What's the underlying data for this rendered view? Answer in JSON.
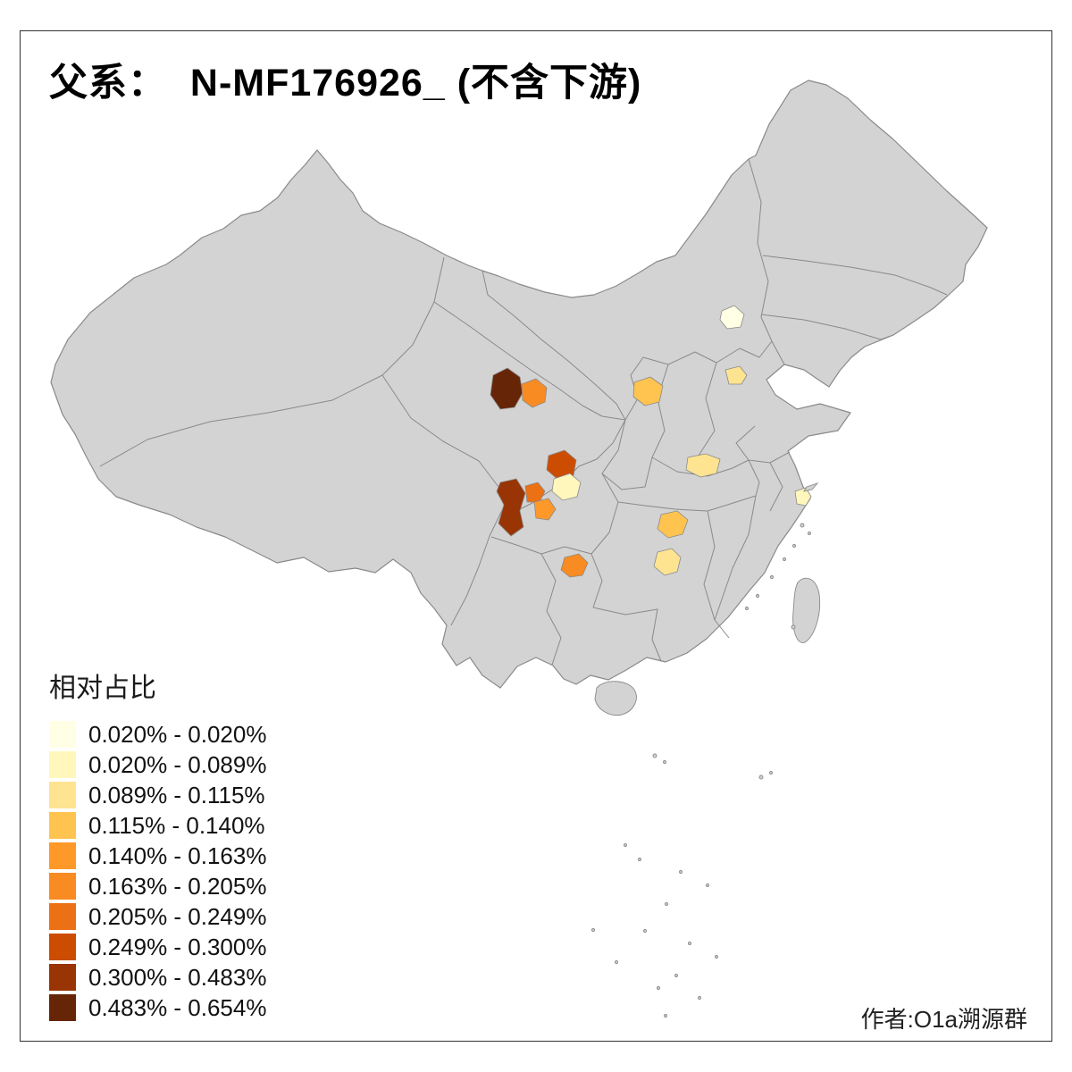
{
  "title": "父系：  N-MF176926_ (不含下游)",
  "legend": {
    "title": "相对占比",
    "entries": [
      {
        "label": "0.020% - 0.020%",
        "color": "#FFFFE5"
      },
      {
        "label": "0.020% - 0.089%",
        "color": "#FFF7BC"
      },
      {
        "label": "0.089% - 0.115%",
        "color": "#FEE391"
      },
      {
        "label": "0.115% - 0.140%",
        "color": "#FEC44F"
      },
      {
        "label": "0.140% - 0.163%",
        "color": "#FE9929"
      },
      {
        "label": "0.163% - 0.205%",
        "color": "#F88B22"
      },
      {
        "label": "0.205% - 0.249%",
        "color": "#EC7014"
      },
      {
        "label": "0.249% - 0.300%",
        "color": "#CC4C02"
      },
      {
        "label": "0.300% - 0.483%",
        "color": "#993404"
      },
      {
        "label": "0.483% - 0.654%",
        "color": "#662506"
      }
    ]
  },
  "credit": "作者:O1a溯源群",
  "map": {
    "base_fill": "#D3D3D3",
    "province_border": "#8A8A8A",
    "frame_border": "#333333",
    "background": "#FFFFFF",
    "highlighted_regions": [
      {
        "id": "qinghai-west",
        "legend_class": 10,
        "color": "#662506"
      },
      {
        "id": "qinghai-east",
        "legend_class": 6,
        "color": "#F88B22"
      },
      {
        "id": "shanxi-central",
        "legend_class": 4,
        "color": "#FEC44F"
      },
      {
        "id": "beijing",
        "legend_class": 1,
        "color": "#FFFFE5"
      },
      {
        "id": "hebei-central",
        "legend_class": 3,
        "color": "#FEE391"
      },
      {
        "id": "gansu-southeast",
        "legend_class": 8,
        "color": "#CC4C02"
      },
      {
        "id": "sichuan-west",
        "legend_class": 9,
        "color": "#993404"
      },
      {
        "id": "sichuan-north",
        "legend_class": 7,
        "color": "#EC7014"
      },
      {
        "id": "sichuan-chengdu",
        "legend_class": 5,
        "color": "#FE9929"
      },
      {
        "id": "sichuan-east",
        "legend_class": 2,
        "color": "#FFF7BC"
      },
      {
        "id": "henan-central",
        "legend_class": 3,
        "color": "#FEE391"
      },
      {
        "id": "hubei-central",
        "legend_class": 4,
        "color": "#FEC44F"
      },
      {
        "id": "hunan-north",
        "legend_class": 3,
        "color": "#FEE391"
      },
      {
        "id": "guizhou-central",
        "legend_class": 6,
        "color": "#F88B22"
      },
      {
        "id": "shanghai",
        "legend_class": 2,
        "color": "#FFF7BC"
      }
    ]
  }
}
